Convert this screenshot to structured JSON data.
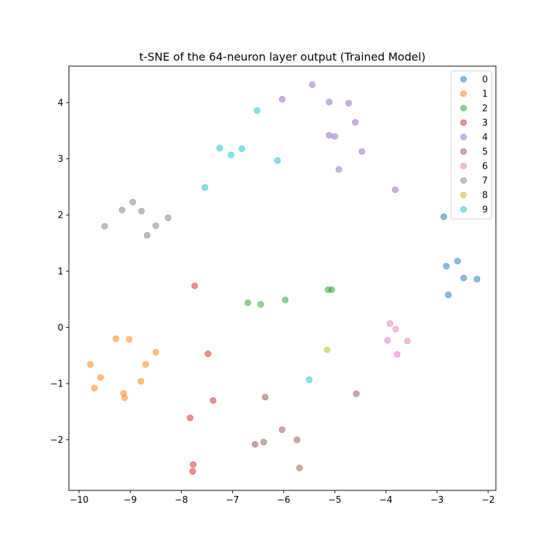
{
  "chart_data": {
    "type": "scatter",
    "title": "t-SNE of the 64-neuron layer output (Trained Model)",
    "xlabel": "",
    "ylabel": "",
    "xlim": [
      -10.2,
      -1.85
    ],
    "ylim": [
      -2.9,
      4.65
    ],
    "xticks": [
      -10,
      -9,
      -8,
      -7,
      -6,
      -5,
      -4,
      -3,
      -2
    ],
    "yticks": [
      -2,
      -1,
      0,
      1,
      2,
      3,
      4
    ],
    "grid": false,
    "legend_position": "top-right",
    "series": [
      {
        "name": "0",
        "color": "#1f77b4",
        "points": [
          [
            -2.87,
            1.97
          ],
          [
            -2.82,
            1.09
          ],
          [
            -2.6,
            1.18
          ],
          [
            -2.48,
            0.88
          ],
          [
            -2.22,
            0.86
          ],
          [
            -2.78,
            0.58
          ]
        ]
      },
      {
        "name": "1",
        "color": "#ff7f0e",
        "points": [
          [
            -9.28,
            -0.2
          ],
          [
            -9.02,
            -0.21
          ],
          [
            -8.5,
            -0.44
          ],
          [
            -8.7,
            -0.66
          ],
          [
            -9.78,
            -0.66
          ],
          [
            -9.58,
            -0.89
          ],
          [
            -8.79,
            -0.96
          ],
          [
            -9.7,
            -1.08
          ],
          [
            -9.13,
            -1.17
          ],
          [
            -9.11,
            -1.25
          ]
        ]
      },
      {
        "name": "2",
        "color": "#2ca02c",
        "points": [
          [
            -6.7,
            0.44
          ],
          [
            -6.45,
            0.41
          ],
          [
            -5.97,
            0.49
          ],
          [
            -5.13,
            0.67
          ],
          [
            -5.06,
            0.67
          ]
        ]
      },
      {
        "name": "3",
        "color": "#d62728",
        "points": [
          [
            -7.74,
            0.74
          ],
          [
            -7.48,
            -0.47
          ],
          [
            -7.38,
            -1.3
          ],
          [
            -7.83,
            -1.61
          ],
          [
            -7.77,
            -2.44
          ],
          [
            -7.78,
            -2.56
          ]
        ]
      },
      {
        "name": "4",
        "color": "#9467bd",
        "points": [
          [
            -5.44,
            4.32
          ],
          [
            -6.03,
            4.06
          ],
          [
            -5.11,
            4.01
          ],
          [
            -4.73,
            3.99
          ],
          [
            -4.6,
            3.65
          ],
          [
            -5.11,
            3.42
          ],
          [
            -5.0,
            3.4
          ],
          [
            -4.47,
            3.13
          ],
          [
            -4.92,
            2.81
          ],
          [
            -3.82,
            2.45
          ]
        ]
      },
      {
        "name": "5",
        "color": "#8c564b",
        "points": [
          [
            -6.36,
            -1.24
          ],
          [
            -4.58,
            -1.18
          ],
          [
            -6.03,
            -1.82
          ],
          [
            -5.74,
            -2.0
          ],
          [
            -6.39,
            -2.04
          ],
          [
            -6.56,
            -2.08
          ],
          [
            -5.69,
            -2.5
          ]
        ]
      },
      {
        "name": "6",
        "color": "#e377c2",
        "points": [
          [
            -3.92,
            0.07
          ],
          [
            -3.81,
            -0.03
          ],
          [
            -3.97,
            -0.23
          ],
          [
            -3.58,
            -0.24
          ],
          [
            -3.78,
            -0.48
          ]
        ]
      },
      {
        "name": "7",
        "color": "#7f7f7f",
        "points": [
          [
            -8.95,
            2.23
          ],
          [
            -9.16,
            2.09
          ],
          [
            -8.78,
            2.07
          ],
          [
            -8.26,
            1.95
          ],
          [
            -8.5,
            1.81
          ],
          [
            -9.5,
            1.8
          ],
          [
            -8.67,
            1.64
          ]
        ]
      },
      {
        "name": "8",
        "color": "#bcbd22",
        "points": [
          [
            -5.15,
            -0.4
          ]
        ]
      },
      {
        "name": "9",
        "color": "#17becf",
        "points": [
          [
            -6.52,
            3.86
          ],
          [
            -7.25,
            3.19
          ],
          [
            -6.82,
            3.18
          ],
          [
            -7.03,
            3.07
          ],
          [
            -6.12,
            2.97
          ],
          [
            -7.54,
            2.49
          ],
          [
            -5.5,
            -0.93
          ]
        ]
      }
    ]
  }
}
